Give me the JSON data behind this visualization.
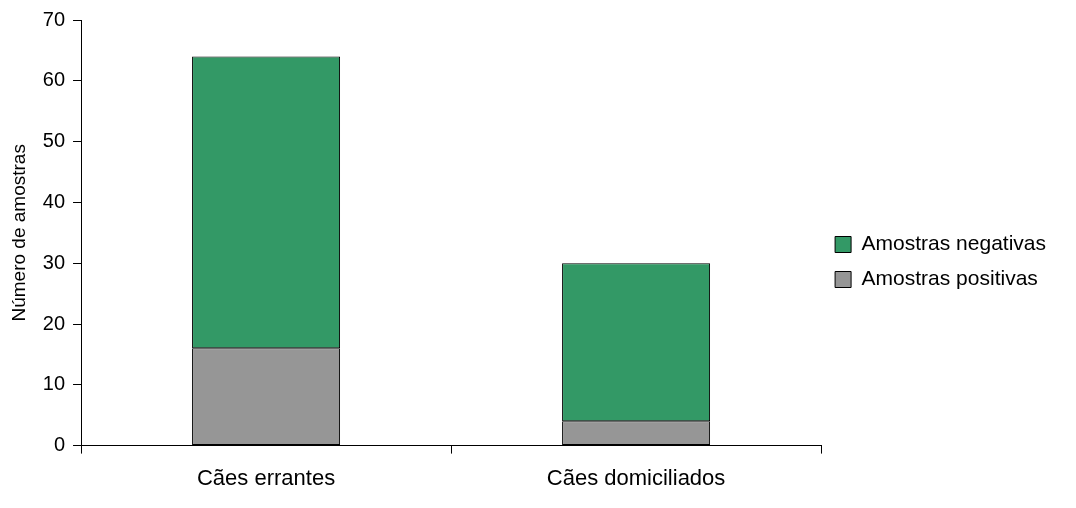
{
  "chart_data": {
    "type": "bar",
    "stacked": true,
    "categories": [
      "Cães errantes",
      "Cães domiciliados"
    ],
    "series": [
      {
        "name": "Amostras positivas",
        "color": "#969696",
        "values": [
          16,
          4
        ]
      },
      {
        "name": "Amostras negativas",
        "color": "#339966",
        "values": [
          48,
          26
        ]
      }
    ],
    "ylabel": "Número de amostras",
    "ylim": [
      0,
      70
    ],
    "yticks": [
      0,
      10,
      20,
      30,
      40,
      50,
      60,
      70
    ],
    "grid": false,
    "legend": "right"
  }
}
